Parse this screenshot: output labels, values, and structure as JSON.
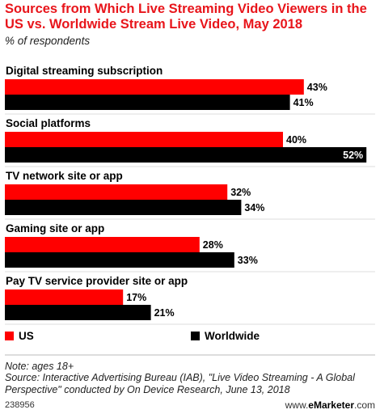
{
  "title": "Sources from Which Live Streaming Video Viewers in the US vs. Worldwide Stream Live Video, May 2018",
  "subtitle": "% of respondents",
  "chart_data": {
    "type": "bar",
    "orientation": "horizontal",
    "categories": [
      "Digital streaming subscription",
      "Social platforms",
      "TV network site or app",
      "Gaming site or app",
      "Pay TV service provider site or app"
    ],
    "series": [
      {
        "name": "US",
        "color": "#ff0000",
        "values": [
          43,
          40,
          32,
          28,
          17
        ]
      },
      {
        "name": "Worldwide",
        "color": "#000000",
        "values": [
          41,
          52,
          34,
          33,
          21
        ]
      }
    ],
    "value_suffix": "%",
    "legend_position": "bottom",
    "grid": false
  },
  "footer": {
    "note": "Note: ages 18+",
    "source": "Source: Interactive Advertising Bureau (IAB), \"Live Video Streaming - A Global Perspective\" conducted by On Device Research, June 13, 2018",
    "chart_id": "238956",
    "brand_prefix": "www.",
    "brand_name": "eMarketer",
    "brand_suffix": ".com"
  }
}
